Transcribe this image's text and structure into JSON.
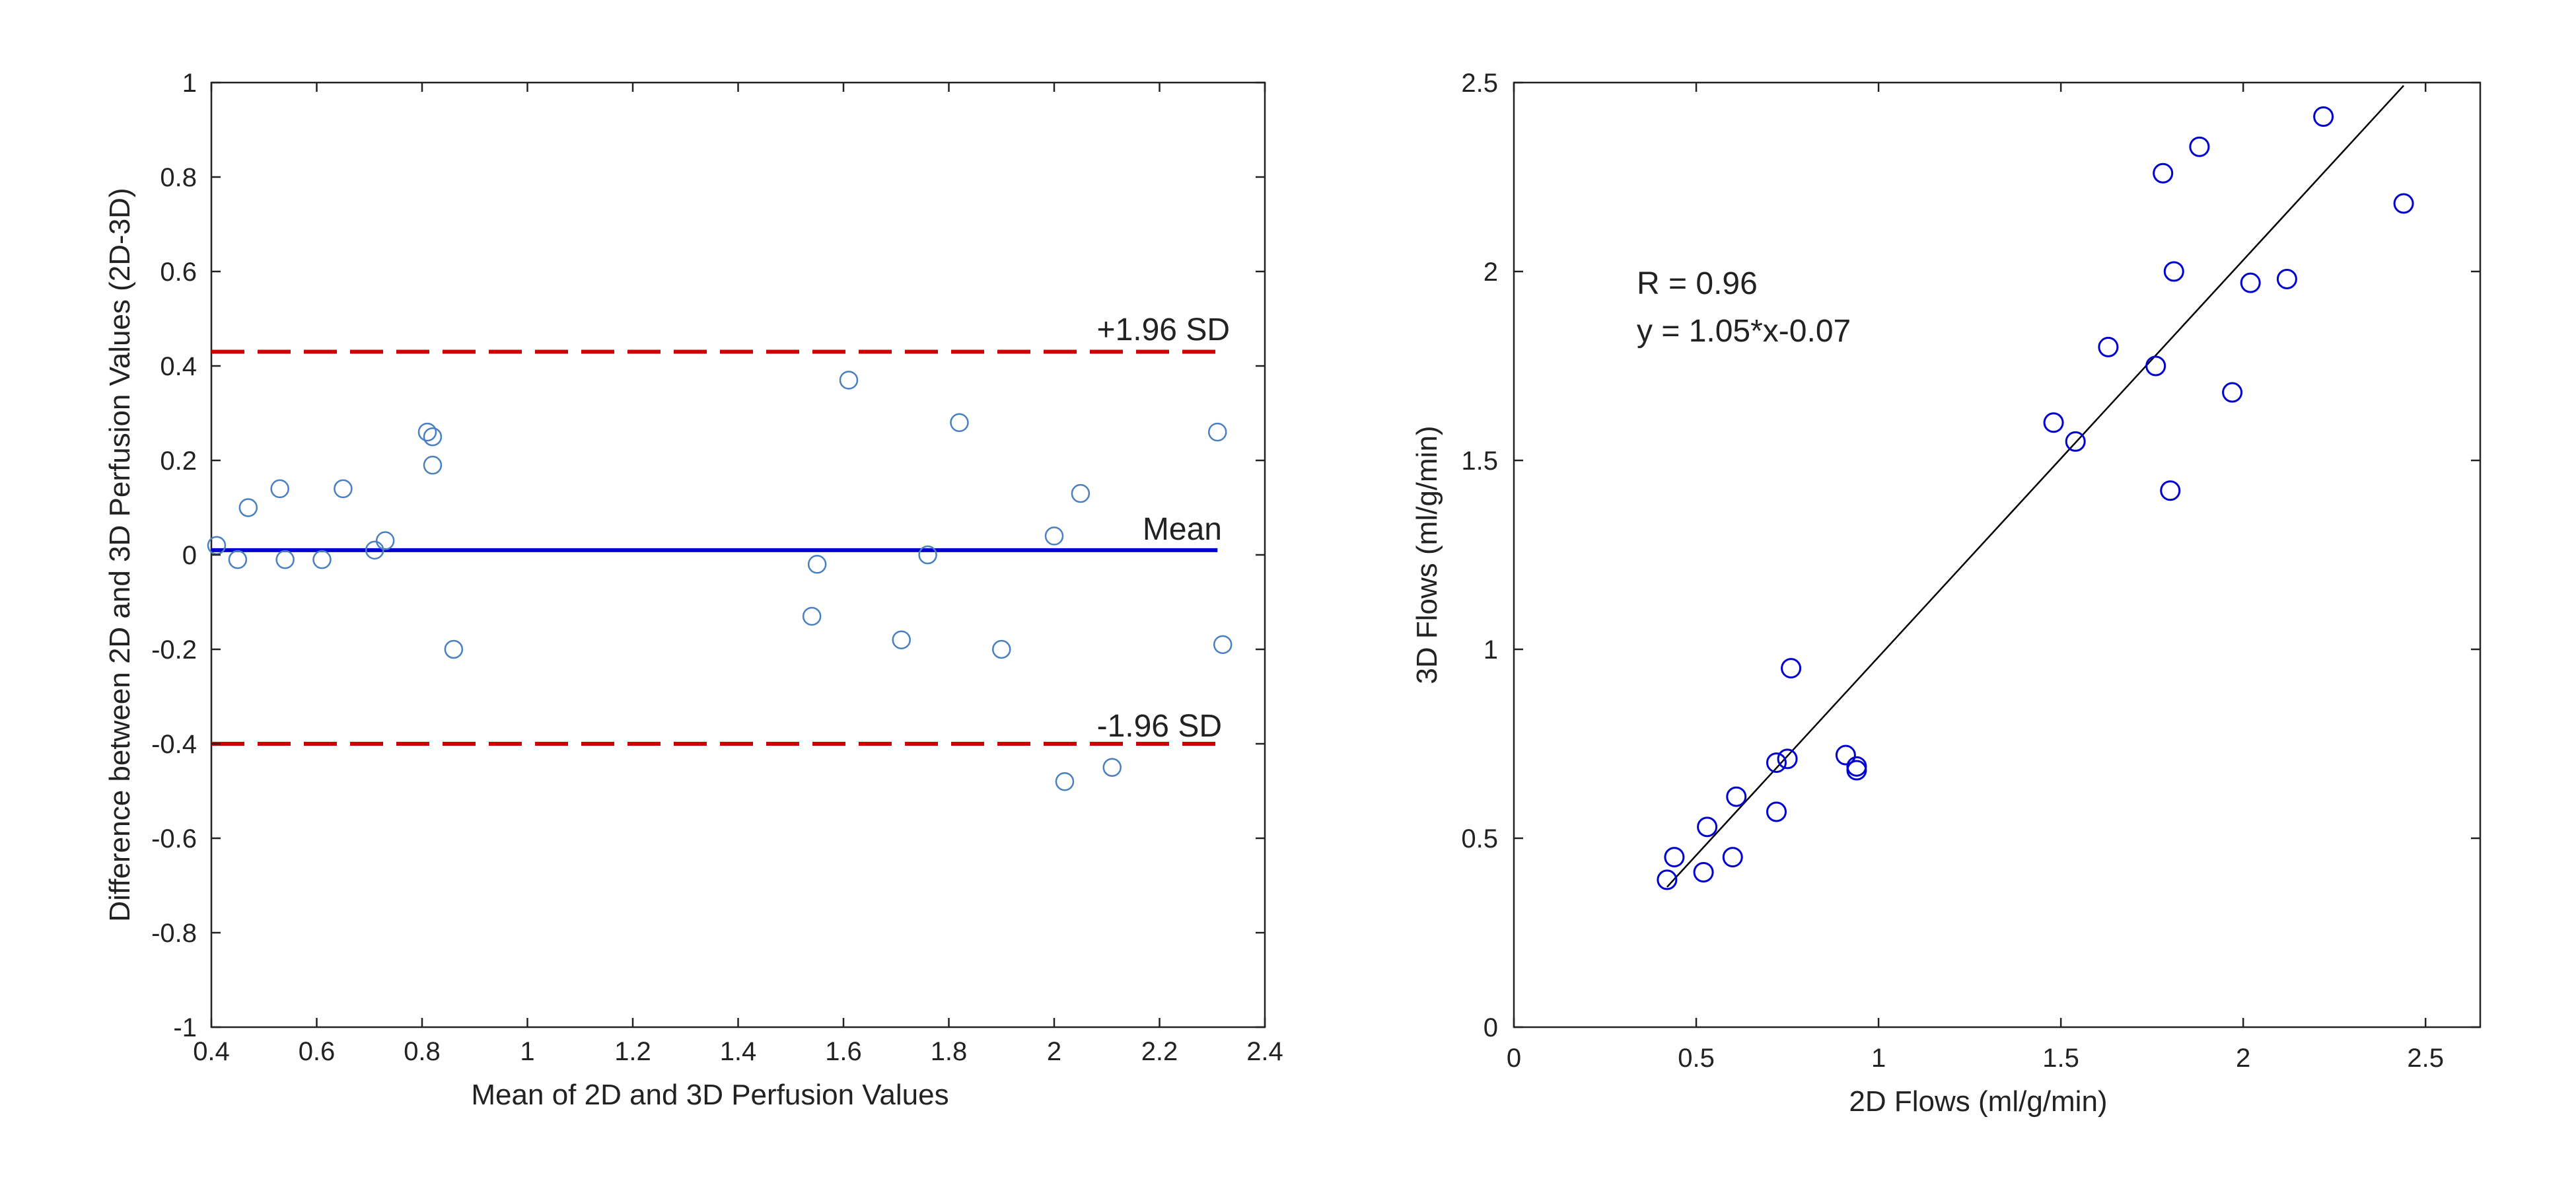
{
  "colors": {
    "axis": "#222222",
    "limits": "#d10000",
    "mean": "#0000d0",
    "ba_marker": "#4a7fc0",
    "corr_marker": "#0000d0",
    "fit": "#000000"
  },
  "chart_data": [
    {
      "type": "scatter",
      "title": "",
      "xlabel": "Mean of 2D and 3D Perfusion Values",
      "ylabel": "Difference between 2D and 3D Perfusion Values (2D-3D)",
      "xlim": [
        0.4,
        2.4
      ],
      "ylim": [
        -1,
        1
      ],
      "xticks": [
        "0.4",
        "0.6",
        "0.8",
        "1",
        "1.2",
        "1.4",
        "1.6",
        "1.8",
        "2",
        "2.2",
        "2.4"
      ],
      "yticks": [
        "-1",
        "-0.8",
        "-0.6",
        "-0.4",
        "-0.2",
        "0",
        "0.2",
        "0.4",
        "0.6",
        "0.8",
        "1"
      ],
      "grid": false,
      "lines": {
        "upper": {
          "label": "+1.96 SD",
          "value": 0.43,
          "x_start": 0.4,
          "x_end": 2.31
        },
        "mean": {
          "label": "Mean",
          "value": 0.01,
          "x_start": 0.4,
          "x_end": 2.31
        },
        "lower": {
          "label": "-1.96 SD",
          "value": -0.4,
          "x_start": 0.4,
          "x_end": 2.31
        }
      },
      "points": [
        {
          "x": 0.41,
          "y": 0.02
        },
        {
          "x": 0.45,
          "y": -0.01
        },
        {
          "x": 0.47,
          "y": 0.1
        },
        {
          "x": 0.53,
          "y": 0.14
        },
        {
          "x": 0.54,
          "y": -0.01
        },
        {
          "x": 0.61,
          "y": -0.01
        },
        {
          "x": 0.65,
          "y": 0.14
        },
        {
          "x": 0.71,
          "y": 0.01
        },
        {
          "x": 0.73,
          "y": 0.03
        },
        {
          "x": 0.81,
          "y": 0.26
        },
        {
          "x": 0.82,
          "y": 0.25
        },
        {
          "x": 0.82,
          "y": 0.19
        },
        {
          "x": 0.86,
          "y": -0.2
        },
        {
          "x": 1.54,
          "y": -0.13
        },
        {
          "x": 1.55,
          "y": -0.02
        },
        {
          "x": 1.61,
          "y": 0.37
        },
        {
          "x": 1.71,
          "y": -0.18
        },
        {
          "x": 1.76,
          "y": 0.0
        },
        {
          "x": 1.82,
          "y": 0.28
        },
        {
          "x": 1.9,
          "y": -0.2
        },
        {
          "x": 2.0,
          "y": 0.04
        },
        {
          "x": 2.02,
          "y": -0.48
        },
        {
          "x": 2.05,
          "y": 0.13
        },
        {
          "x": 2.11,
          "y": -0.45
        },
        {
          "x": 2.31,
          "y": 0.26
        },
        {
          "x": 2.32,
          "y": -0.19
        }
      ]
    },
    {
      "type": "scatter",
      "title": "",
      "xlabel": "2D Flows (ml/g/min)",
      "ylabel": "3D Flows (ml/g/min)",
      "xlim": [
        0,
        2.65
      ],
      "ylim": [
        0,
        2.5
      ],
      "xticks": [
        {
          "value": 0,
          "label": "0"
        },
        {
          "value": 0.5,
          "label": "0.5"
        },
        {
          "value": 1,
          "label": "1"
        },
        {
          "value": 1.5,
          "label": "1.5"
        },
        {
          "value": 2,
          "label": "2"
        },
        {
          "value": 2.5,
          "label": "2.5"
        }
      ],
      "yticks": [
        {
          "value": 0,
          "label": "0"
        },
        {
          "value": 0.5,
          "label": "0.5"
        },
        {
          "value": 1,
          "label": "1"
        },
        {
          "value": 1.5,
          "label": "1.5"
        },
        {
          "value": 2,
          "label": "2"
        },
        {
          "value": 2.5,
          "label": "2.5"
        }
      ],
      "grid": false,
      "annotations": [
        "R = 0.96",
        "y = 1.05*x-0.07"
      ],
      "fit": {
        "slope": 1.05,
        "intercept": -0.07,
        "x_start": 0.42,
        "x_end": 2.44
      },
      "points": [
        {
          "x": 0.42,
          "y": 0.39
        },
        {
          "x": 0.44,
          "y": 0.45
        },
        {
          "x": 0.52,
          "y": 0.41
        },
        {
          "x": 0.53,
          "y": 0.53
        },
        {
          "x": 0.6,
          "y": 0.45
        },
        {
          "x": 0.61,
          "y": 0.61
        },
        {
          "x": 0.72,
          "y": 0.57
        },
        {
          "x": 0.72,
          "y": 0.7
        },
        {
          "x": 0.75,
          "y": 0.71
        },
        {
          "x": 0.76,
          "y": 0.95
        },
        {
          "x": 0.91,
          "y": 0.72
        },
        {
          "x": 0.94,
          "y": 0.69
        },
        {
          "x": 0.94,
          "y": 0.68
        },
        {
          "x": 1.48,
          "y": 1.6
        },
        {
          "x": 1.54,
          "y": 1.55
        },
        {
          "x": 1.63,
          "y": 1.8
        },
        {
          "x": 1.76,
          "y": 1.75
        },
        {
          "x": 1.78,
          "y": 2.26
        },
        {
          "x": 1.8,
          "y": 1.42
        },
        {
          "x": 1.81,
          "y": 2.0
        },
        {
          "x": 1.88,
          "y": 2.33
        },
        {
          "x": 1.97,
          "y": 1.68
        },
        {
          "x": 2.02,
          "y": 1.97
        },
        {
          "x": 2.12,
          "y": 1.98
        },
        {
          "x": 2.22,
          "y": 2.41
        },
        {
          "x": 2.44,
          "y": 2.18
        }
      ]
    }
  ]
}
